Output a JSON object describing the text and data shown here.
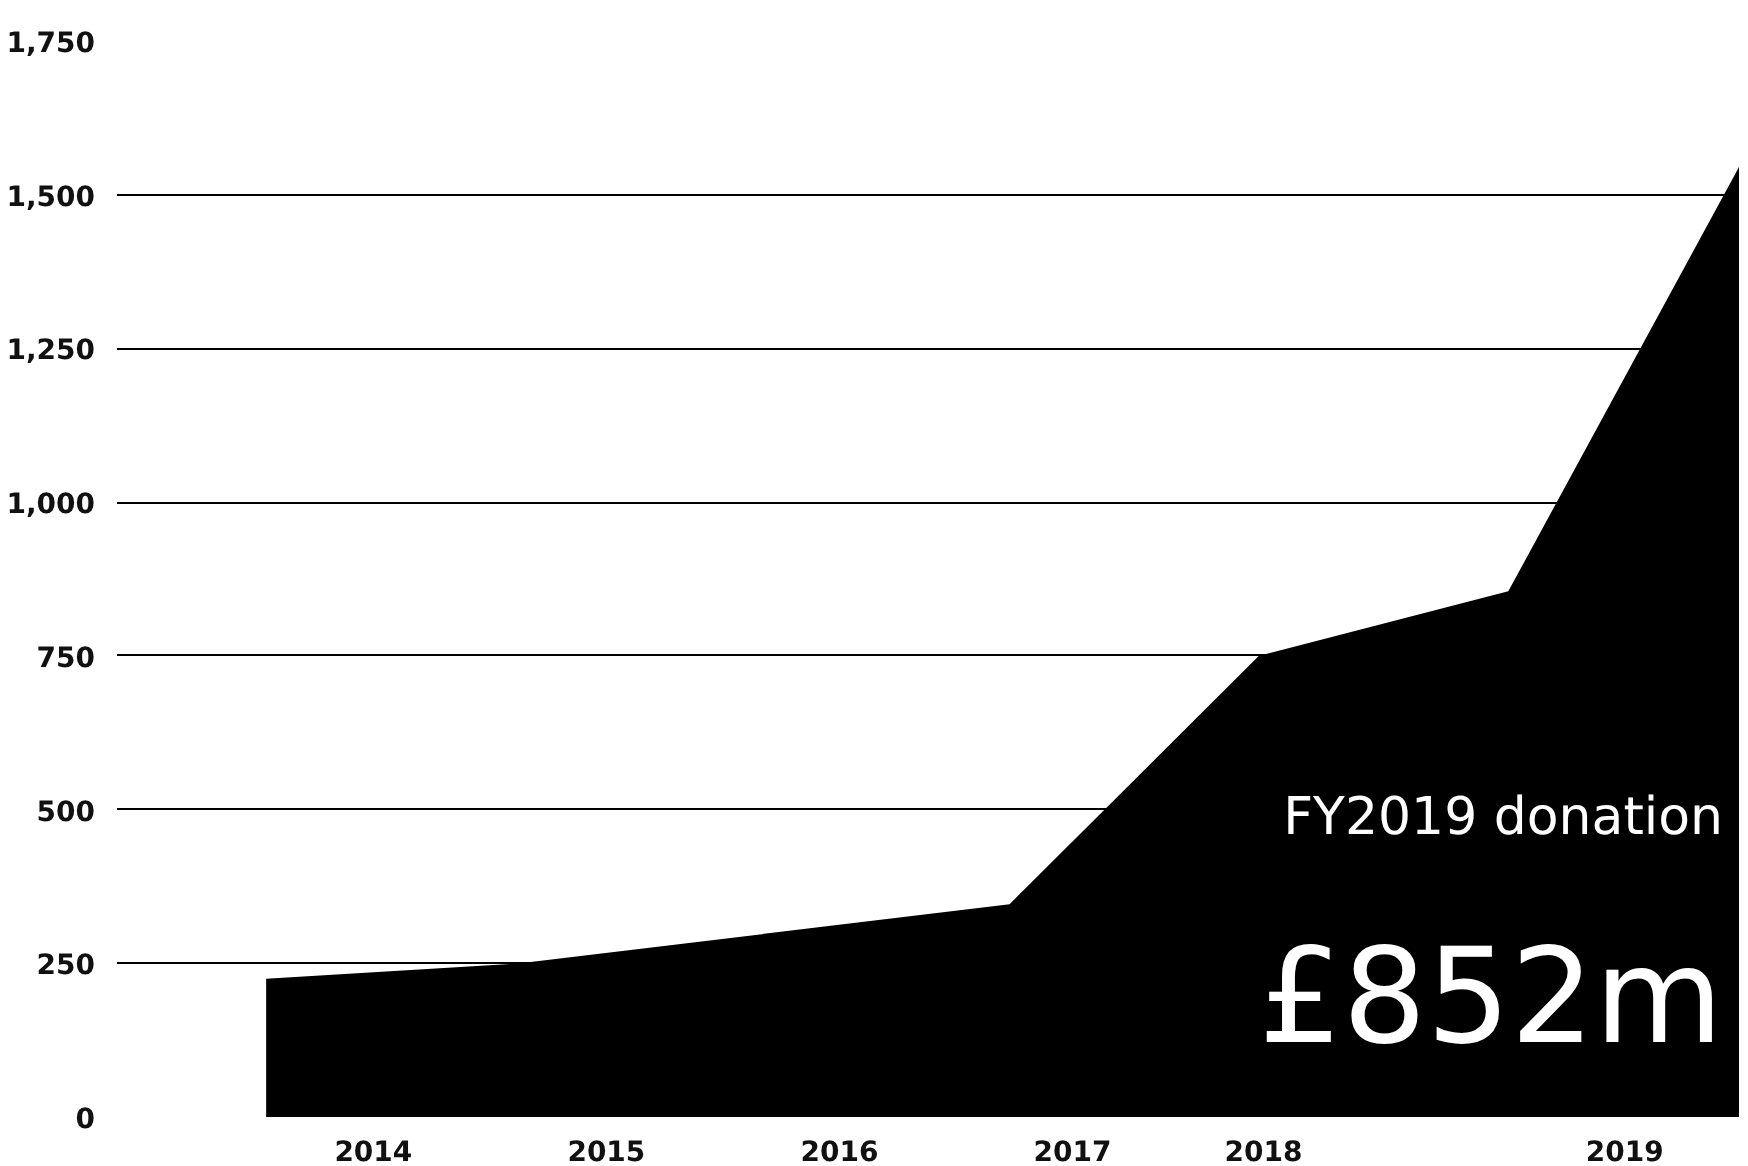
{
  "chart_data": {
    "type": "area",
    "x": [
      2013.54,
      2014.63,
      2016.73,
      2017.8,
      2018.87,
      2019.86
    ],
    "series": [
      {
        "color": "#000000",
        "values": [
          225,
          250,
          346,
          750,
          855,
          1545
        ]
      }
    ],
    "xlim": [
      2012.9,
      2019.86
    ],
    "xticks": [
      {
        "value": 2014,
        "label": "2014"
      },
      {
        "value": 2015,
        "label": "2015"
      },
      {
        "value": 2016,
        "label": "2016"
      },
      {
        "value": 2017,
        "label": "2017"
      },
      {
        "value": 2017.82,
        "label": "2018"
      },
      {
        "value": 2019.37,
        "label": "2019"
      }
    ],
    "ylim": [
      0,
      1750
    ],
    "yticks": [
      0,
      {
        "value": 250,
        "label": "250"
      },
      {
        "value": 500,
        "label": "500"
      },
      {
        "value": 750,
        "label": "750"
      },
      {
        "value": 1000,
        "label": "1,000"
      },
      {
        "value": 1250,
        "label": "1,250"
      },
      {
        "value": 1500,
        "label": "1,500"
      },
      {
        "value": 1750,
        "label": "1,750"
      }
    ],
    "grid": "y",
    "annotations": [
      "FY2019 donation",
      "£852m"
    ]
  }
}
